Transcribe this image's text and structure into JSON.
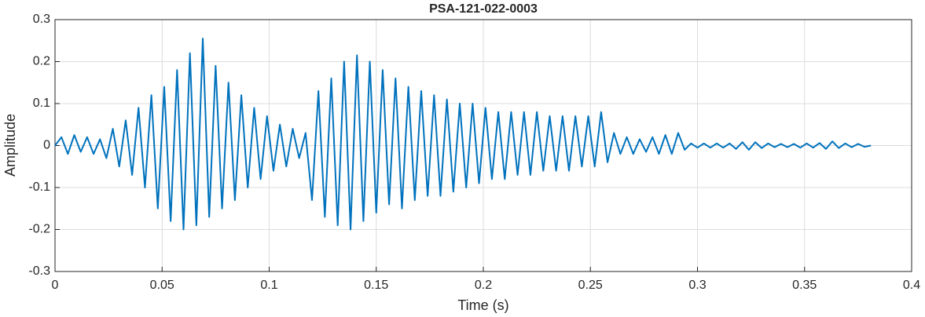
{
  "chart_data": {
    "type": "line",
    "title": "PSA-121-022-0003",
    "xlabel": "Time (s)",
    "ylabel": "Amplitude",
    "xlim": [
      0,
      0.4
    ],
    "ylim": [
      -0.3,
      0.3
    ],
    "xticks": [
      0,
      0.05,
      0.1,
      0.15,
      0.2,
      0.25,
      0.3,
      0.35,
      0.4
    ],
    "yticks": [
      -0.3,
      -0.2,
      -0.1,
      0,
      0.1,
      0.2,
      0.3
    ],
    "grid": true,
    "x": [
      0,
      0.003,
      0.006,
      0.009,
      0.012,
      0.015,
      0.018,
      0.021,
      0.024,
      0.027,
      0.03,
      0.033,
      0.036,
      0.039,
      0.042,
      0.045,
      0.048,
      0.051,
      0.054,
      0.057,
      0.06,
      0.063,
      0.066,
      0.069,
      0.072,
      0.075,
      0.078,
      0.081,
      0.084,
      0.087,
      0.09,
      0.093,
      0.096,
      0.099,
      0.102,
      0.105,
      0.108,
      0.111,
      0.114,
      0.117,
      0.12,
      0.123,
      0.126,
      0.129,
      0.132,
      0.135,
      0.138,
      0.141,
      0.144,
      0.147,
      0.15,
      0.153,
      0.156,
      0.159,
      0.162,
      0.165,
      0.168,
      0.171,
      0.174,
      0.177,
      0.18,
      0.183,
      0.186,
      0.189,
      0.192,
      0.195,
      0.198,
      0.201,
      0.204,
      0.207,
      0.21,
      0.213,
      0.216,
      0.219,
      0.222,
      0.225,
      0.228,
      0.231,
      0.234,
      0.237,
      0.24,
      0.243,
      0.246,
      0.249,
      0.252,
      0.255,
      0.258,
      0.261,
      0.264,
      0.267,
      0.27,
      0.273,
      0.276,
      0.279,
      0.282,
      0.285,
      0.288,
      0.291,
      0.294,
      0.297,
      0.3,
      0.303,
      0.306,
      0.309,
      0.312,
      0.315,
      0.318,
      0.321,
      0.324,
      0.327,
      0.33,
      0.333,
      0.336,
      0.339,
      0.342,
      0.345,
      0.348,
      0.351,
      0.354,
      0.357,
      0.36,
      0.363,
      0.366,
      0.369,
      0.372,
      0.375,
      0.378,
      0.381
    ],
    "series": [
      {
        "color": "#0072bd",
        "values": [
          0,
          0.02,
          -0.02,
          0.025,
          -0.015,
          0.02,
          -0.02,
          0.015,
          -0.03,
          0.04,
          -0.05,
          0.06,
          -0.07,
          0.09,
          -0.1,
          0.12,
          -0.15,
          0.14,
          -0.18,
          0.18,
          -0.2,
          0.22,
          -0.19,
          0.255,
          -0.17,
          0.19,
          -0.15,
          0.15,
          -0.13,
          0.12,
          -0.1,
          0.09,
          -0.08,
          0.07,
          -0.06,
          0.05,
          -0.05,
          0.04,
          -0.03,
          0.03,
          -0.13,
          0.13,
          -0.17,
          0.16,
          -0.19,
          0.2,
          -0.2,
          0.215,
          -0.18,
          0.2,
          -0.16,
          0.18,
          -0.14,
          0.16,
          -0.15,
          0.14,
          -0.13,
          0.13,
          -0.12,
          0.12,
          -0.12,
          0.11,
          -0.11,
          0.1,
          -0.1,
          0.1,
          -0.09,
          0.09,
          -0.08,
          0.08,
          -0.08,
          0.08,
          -0.07,
          0.08,
          -0.07,
          0.08,
          -0.06,
          0.07,
          -0.06,
          0.07,
          -0.06,
          0.07,
          -0.05,
          0.07,
          -0.05,
          0.08,
          -0.04,
          0.03,
          -0.02,
          0.02,
          -0.02,
          0.015,
          -0.015,
          0.02,
          -0.02,
          0.025,
          -0.02,
          0.03,
          -0.01,
          0.005,
          -0.005,
          0.005,
          -0.005,
          0.005,
          -0.005,
          0.005,
          -0.008,
          0.008,
          -0.01,
          0.008,
          -0.006,
          0.005,
          -0.004,
          0.004,
          -0.004,
          0.004,
          -0.005,
          0.005,
          -0.005,
          0.006,
          -0.008,
          0.01,
          -0.006,
          0.005,
          -0.004,
          0.004,
          -0.003,
          0
        ]
      }
    ]
  }
}
